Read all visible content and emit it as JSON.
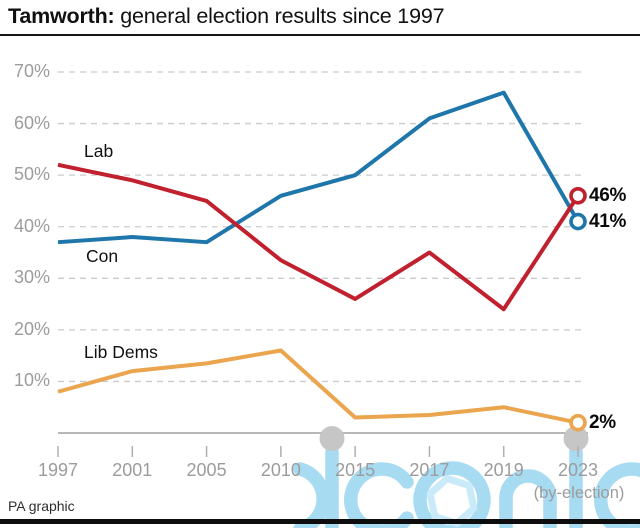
{
  "header": {
    "title_bold": "Tamworth:",
    "title_rest": " general election results since 1997"
  },
  "footer": {
    "credit": "PA graphic"
  },
  "watermark": {
    "text": "iconic",
    "color": "#a7dbf2",
    "hexagon_color": "#c9eaf8",
    "dot_color": "#c6c6c6"
  },
  "chart_data": {
    "type": "line",
    "title": "Tamworth: general election results since 1997",
    "categories": [
      "1997",
      "2001",
      "2005",
      "2010",
      "2015",
      "2017",
      "2019",
      "2023"
    ],
    "x_note": {
      "category": "2023",
      "label": "(by-election)"
    },
    "yticks": [
      "10%",
      "20%",
      "30%",
      "40%",
      "50%",
      "60%",
      "70%"
    ],
    "ylim": [
      0,
      70
    ],
    "unit": "%",
    "grid": "horizontal-dashed",
    "legend_position": "inline-labels",
    "series": [
      {
        "name": "Lib Dems",
        "color": "#eaa54e",
        "values": [
          8,
          12,
          13.5,
          16,
          3,
          3.5,
          5,
          2
        ],
        "end_label": "2%"
      },
      {
        "name": "Con",
        "color": "#1e76aa",
        "values": [
          37,
          38,
          37,
          46,
          50,
          61,
          66,
          41
        ],
        "end_label": "41%"
      },
      {
        "name": "Lab",
        "color": "#c1202e",
        "values": [
          52,
          49,
          45,
          33.5,
          26,
          35,
          24,
          46
        ],
        "end_label": "46%"
      }
    ]
  }
}
